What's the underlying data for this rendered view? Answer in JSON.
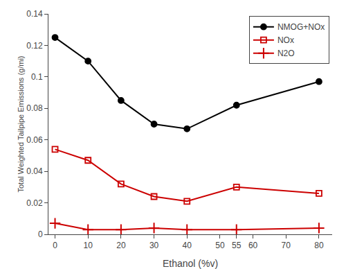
{
  "chart_data": {
    "type": "line",
    "x_label": "Ethanol (%v)",
    "y_label": "Total Weighted Tailpipe Emissions (g/mi)",
    "x": [
      0,
      10,
      20,
      30,
      40,
      55,
      80
    ],
    "series": [
      {
        "name": "NMOG+NOx",
        "color": "#000000",
        "marker": "circle",
        "values": [
          0.125,
          0.11,
          0.085,
          0.07,
          0.067,
          0.082,
          0.097
        ]
      },
      {
        "name": "NOx",
        "color": "#cc0000",
        "marker": "square-open",
        "values": [
          0.054,
          0.047,
          0.032,
          0.024,
          0.021,
          0.03,
          0.026
        ]
      },
      {
        "name": "N2O",
        "color": "#cc0000",
        "marker": "plus",
        "values": [
          0.007,
          0.003,
          0.003,
          0.004,
          0.003,
          0.003,
          0.004
        ]
      }
    ],
    "xlim": [
      -2,
      84
    ],
    "xticks": [
      0,
      10,
      20,
      30,
      40,
      50,
      55,
      60,
      70,
      80
    ],
    "ylim": [
      0,
      0.14
    ],
    "yticks": [
      0,
      0.02,
      0.04,
      0.06,
      0.08,
      0.1,
      0.12,
      0.14
    ],
    "grid": false,
    "legend": "upper right"
  }
}
